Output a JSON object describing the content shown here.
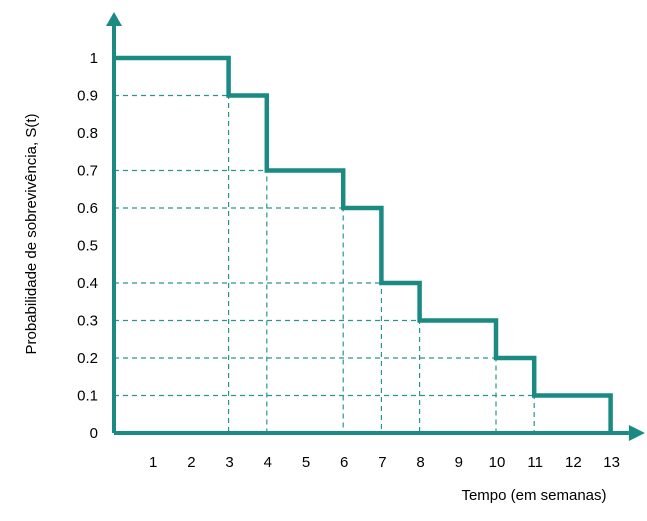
{
  "chart_data": {
    "type": "line",
    "step": "post",
    "title": "",
    "xlabel": "Tempo (em semanas)",
    "ylabel": "Probabilidade de sobrevivência, S(t)",
    "x_ticks": [
      1,
      2,
      3,
      4,
      5,
      6,
      7,
      8,
      9,
      10,
      11,
      12,
      13
    ],
    "y_ticks": [
      "0",
      "0.1",
      "0.2",
      "0.3",
      "0.4",
      "0.5",
      "0.6",
      "0.7",
      "0.8",
      "0.9",
      "1"
    ],
    "xlim": [
      0,
      13.4
    ],
    "ylim": [
      0,
      1
    ],
    "grid": "dashed guides at step points",
    "series": [
      {
        "x": [
          0,
          3,
          4,
          6,
          7,
          8,
          10,
          11,
          13
        ],
        "y": [
          1,
          0.9,
          0.7,
          0.6,
          0.4,
          0.3,
          0.2,
          0.1,
          0
        ],
        "color": "#1a8a82"
      }
    ],
    "colors": {
      "line": "#1a8a82",
      "axis": "#1a8a82",
      "guide": "#2a958d"
    }
  }
}
